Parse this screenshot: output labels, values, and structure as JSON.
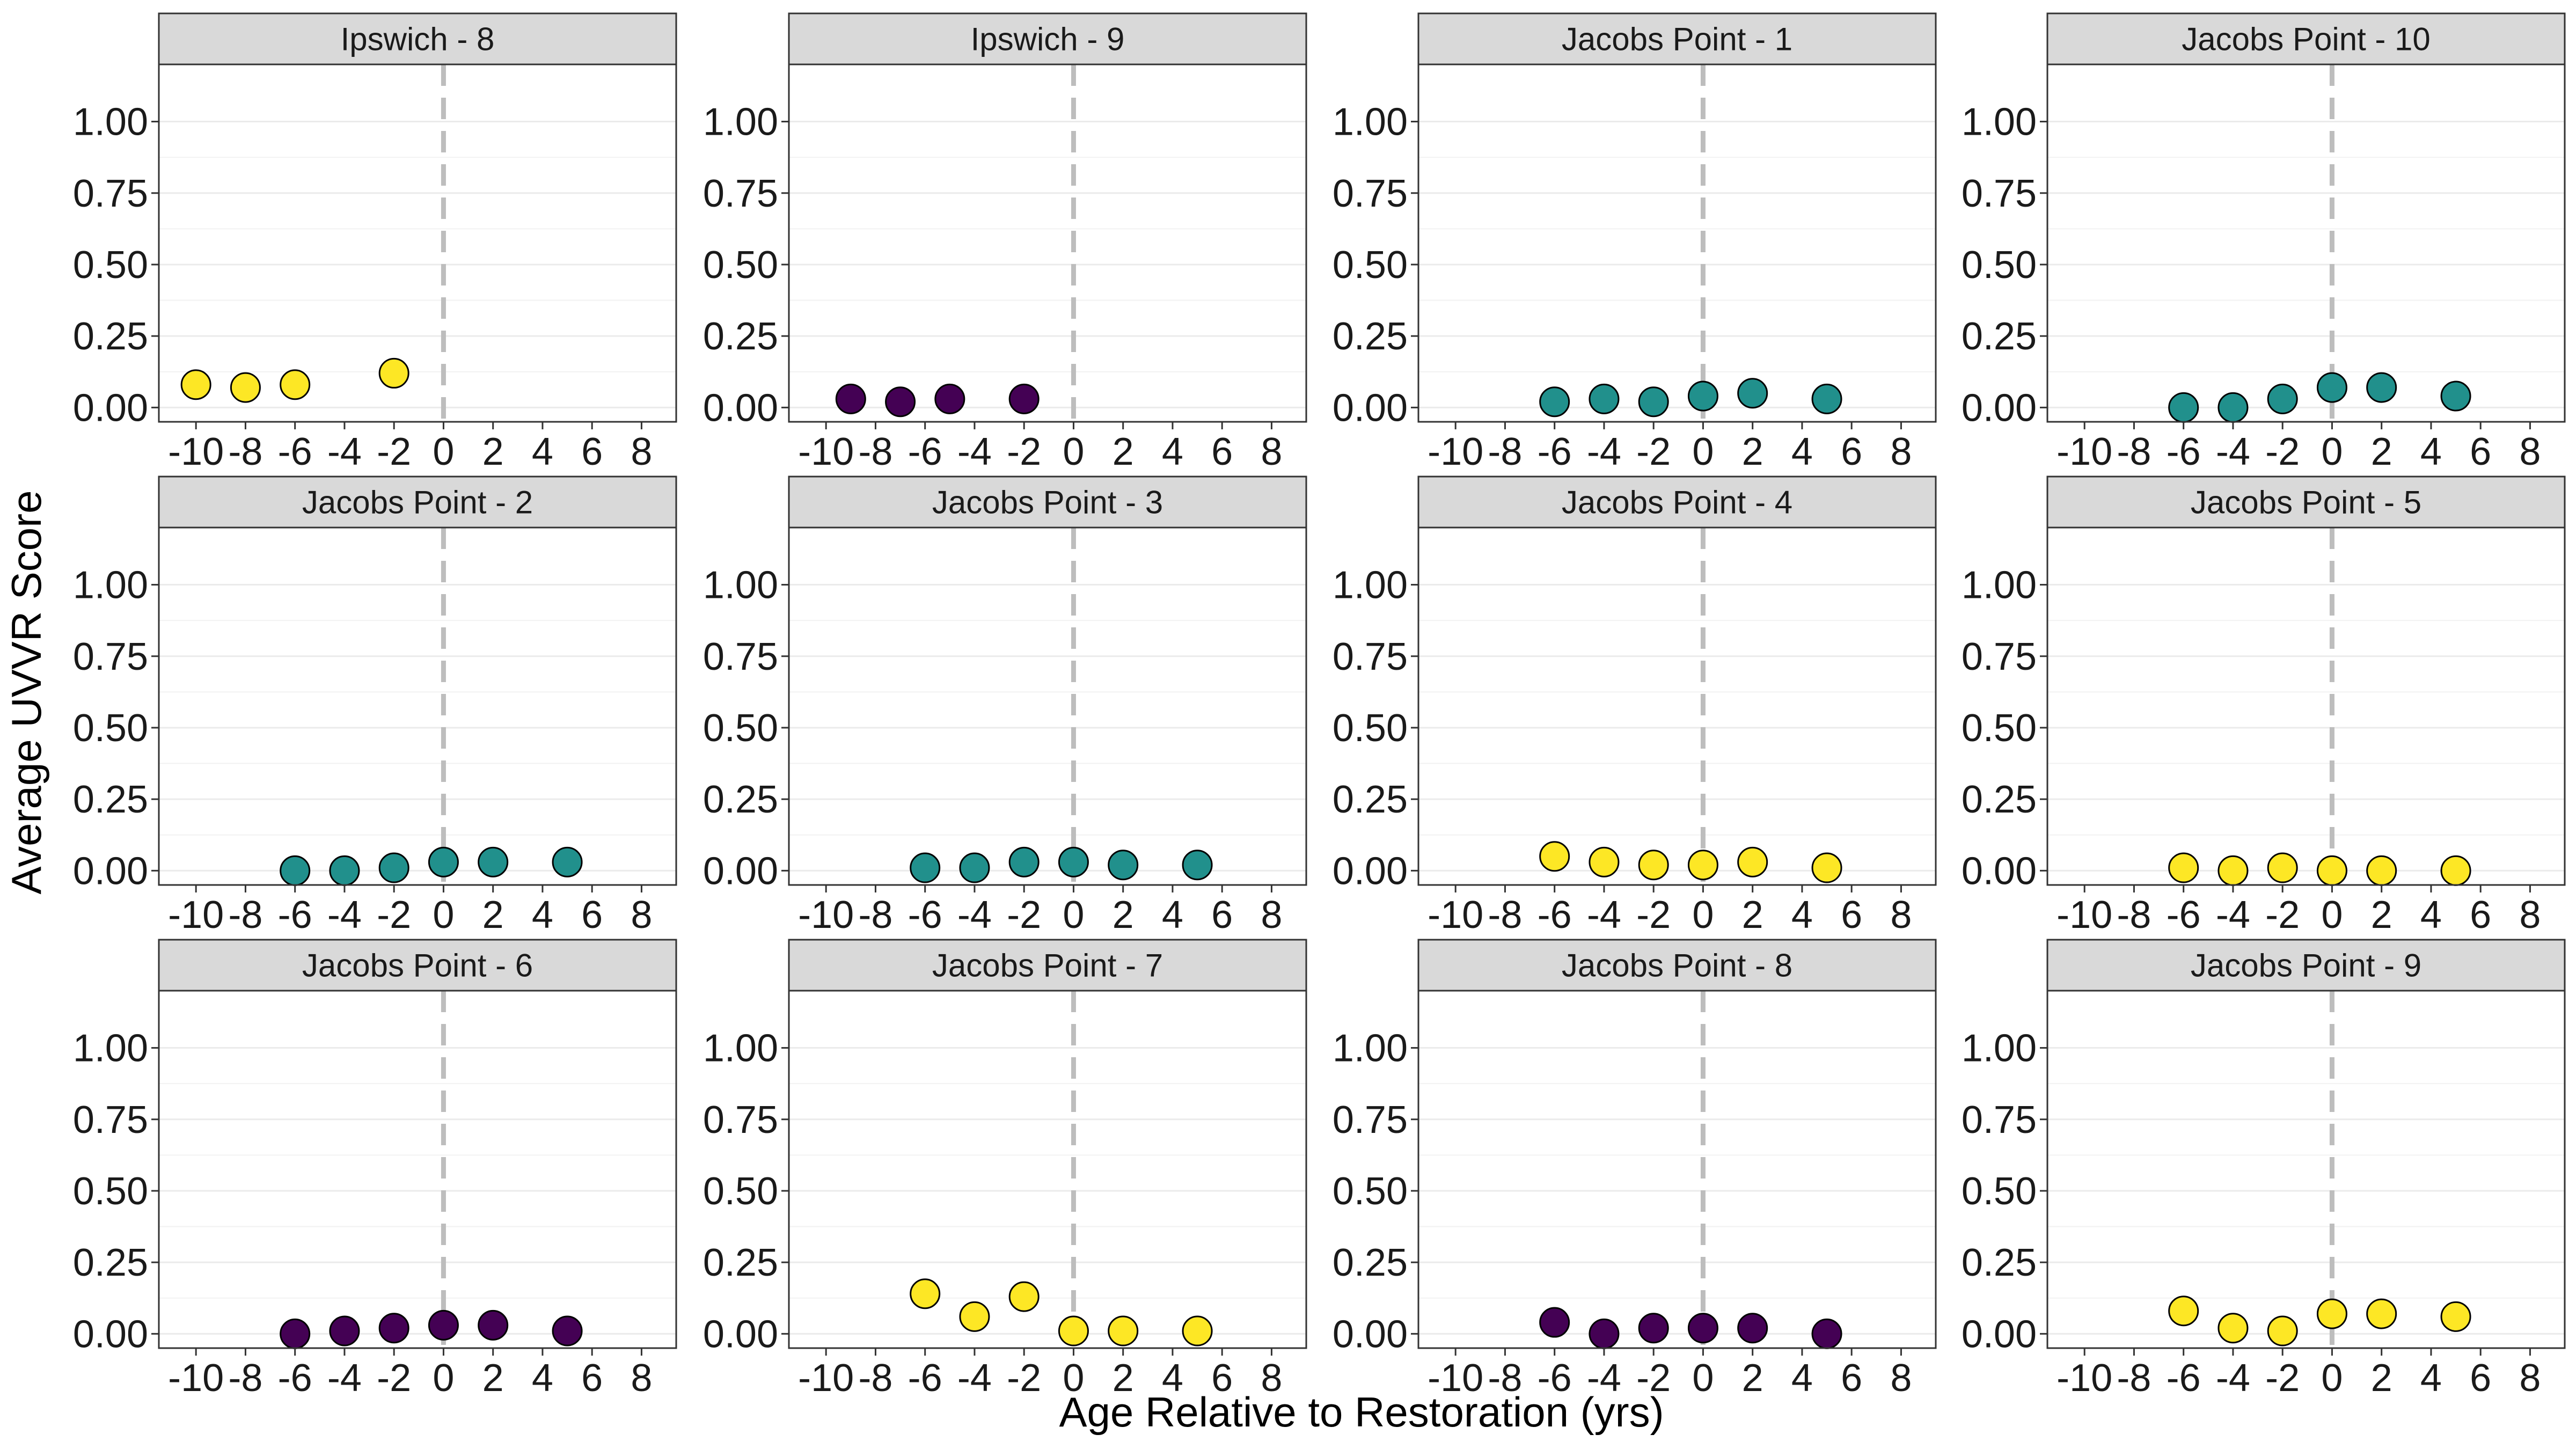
{
  "chart_data": {
    "type": "scatter",
    "facet_layout": "3 rows x 4 columns",
    "xlabel": "Age Relative to Restoration (yrs)",
    "ylabel": "Average UVVR Score",
    "xlim": [
      -11.5,
      9.4
    ],
    "ylim": [
      -0.05,
      1.2
    ],
    "x_ticks": [
      -10,
      -8,
      -6,
      -4,
      -2,
      0,
      2,
      4,
      6,
      8
    ],
    "x_tick_labels": [
      "-10",
      "-8",
      "-6",
      "-4",
      "-2",
      "0",
      "2",
      "4",
      "6",
      "8"
    ],
    "y_ticks": [
      0,
      0.25,
      0.5,
      0.75,
      1
    ],
    "y_tick_labels": [
      "0.00",
      "0.25",
      "0.50",
      "0.75",
      "1.00"
    ],
    "reference_line": {
      "x": 0,
      "style": "dashed",
      "color": "#bdbdbd"
    },
    "grid": true,
    "legend": "none",
    "colors": {
      "yellow": "#fde725",
      "teal": "#21908c",
      "purple": "#440154",
      "point_outline": "#000000"
    },
    "panels": [
      {
        "title": "Ipswich - 8",
        "color": "#fde725",
        "x": [
          -10,
          -8,
          -6,
          -2
        ],
        "y": [
          0.08,
          0.07,
          0.08,
          0.12
        ]
      },
      {
        "title": "Ipswich - 9",
        "color": "#440154",
        "x": [
          -9,
          -7,
          -5,
          -2
        ],
        "y": [
          0.03,
          0.02,
          0.03,
          0.03
        ]
      },
      {
        "title": "Jacobs Point - 1",
        "color": "#21908c",
        "x": [
          -6,
          -4,
          -2,
          0,
          2,
          5
        ],
        "y": [
          0.02,
          0.03,
          0.02,
          0.04,
          0.05,
          0.03
        ]
      },
      {
        "title": "Jacobs Point - 10",
        "color": "#21908c",
        "x": [
          -6,
          -4,
          -2,
          0,
          2,
          5
        ],
        "y": [
          0.0,
          0.0,
          0.03,
          0.07,
          0.07,
          0.04
        ]
      },
      {
        "title": "Jacobs Point - 2",
        "color": "#21908c",
        "x": [
          -6,
          -4,
          -2,
          0,
          2,
          5
        ],
        "y": [
          0.0,
          0.0,
          0.01,
          0.03,
          0.03,
          0.03
        ]
      },
      {
        "title": "Jacobs Point - 3",
        "color": "#21908c",
        "x": [
          -6,
          -4,
          -2,
          0,
          2,
          5
        ],
        "y": [
          0.01,
          0.01,
          0.03,
          0.03,
          0.02,
          0.02
        ]
      },
      {
        "title": "Jacobs Point - 4",
        "color": "#fde725",
        "x": [
          -6,
          -4,
          -2,
          0,
          2,
          5
        ],
        "y": [
          0.05,
          0.03,
          0.02,
          0.02,
          0.03,
          0.01
        ]
      },
      {
        "title": "Jacobs Point - 5",
        "color": "#fde725",
        "x": [
          -6,
          -4,
          -2,
          0,
          2,
          5
        ],
        "y": [
          0.01,
          0.0,
          0.01,
          0.0,
          0.0,
          0.0
        ]
      },
      {
        "title": "Jacobs Point - 6",
        "color": "#440154",
        "x": [
          -6,
          -4,
          -2,
          0,
          2,
          5
        ],
        "y": [
          0.0,
          0.01,
          0.02,
          0.03,
          0.03,
          0.01
        ]
      },
      {
        "title": "Jacobs Point - 7",
        "color": "#fde725",
        "x": [
          -6,
          -4,
          -2,
          0,
          2,
          5
        ],
        "y": [
          0.14,
          0.06,
          0.13,
          0.01,
          0.01,
          0.01
        ]
      },
      {
        "title": "Jacobs Point - 8",
        "color": "#440154",
        "x": [
          -6,
          -4,
          -2,
          0,
          2,
          5
        ],
        "y": [
          0.04,
          0.0,
          0.02,
          0.02,
          0.02,
          0.0
        ]
      },
      {
        "title": "Jacobs Point - 9",
        "color": "#fde725",
        "x": [
          -6,
          -4,
          -2,
          0,
          2,
          5
        ],
        "y": [
          0.08,
          0.02,
          0.01,
          0.07,
          0.07,
          0.06
        ]
      }
    ]
  }
}
